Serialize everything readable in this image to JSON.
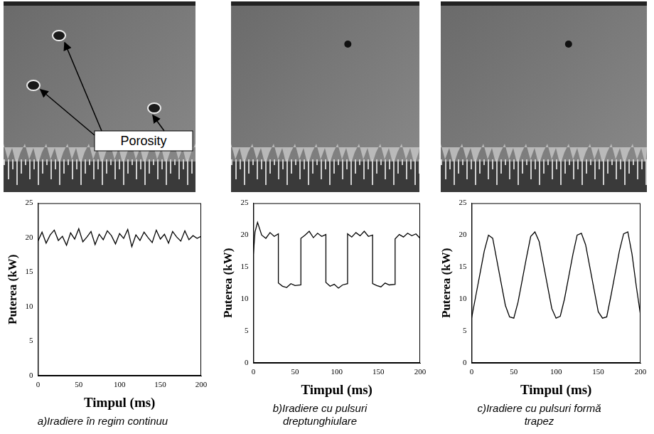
{
  "chart_data": [
    {
      "type": "line",
      "title": "a)Iradiere în regim continuu",
      "xlabel": "Timpul (ms)",
      "ylabel": "Puterea (kW)",
      "annotations": [
        "Porosity"
      ],
      "x": [
        0,
        5,
        10,
        15,
        20,
        25,
        30,
        35,
        40,
        45,
        50,
        55,
        60,
        65,
        70,
        75,
        80,
        85,
        90,
        95,
        100,
        105,
        110,
        115,
        120,
        125,
        130,
        135,
        140,
        145,
        150,
        155,
        160,
        165,
        170,
        175,
        180,
        185,
        190,
        195,
        200
      ],
      "values": [
        19.5,
        20.8,
        19.2,
        20.4,
        21.1,
        19.6,
        20.2,
        18.9,
        20.7,
        19.8,
        21.3,
        19.4,
        20.1,
        20.9,
        19.0,
        20.5,
        19.7,
        21.0,
        20.3,
        19.1,
        20.6,
        19.9,
        21.2,
        18.7,
        20.4,
        19.6,
        20.8,
        20.0,
        19.3,
        21.1,
        19.8,
        20.5,
        19.2,
        20.9,
        20.1,
        19.5,
        21.0,
        19.7,
        20.3,
        19.9,
        20.2
      ],
      "color": "#000000",
      "xlim": [
        0,
        200
      ],
      "xticks": [
        0,
        50,
        100,
        150,
        200
      ],
      "ylim": [
        0,
        25
      ],
      "yticks": [
        0,
        5,
        10,
        15,
        20,
        25
      ],
      "grid": false
    },
    {
      "type": "line",
      "title": "b)Iradiere cu pulsuri dreptunghiulare",
      "xlabel": "Timpul (ms)",
      "ylabel": "Puterea (kW)",
      "x": [
        0,
        2,
        5,
        10,
        15,
        20,
        25,
        30,
        30,
        35,
        40,
        45,
        50,
        57,
        57,
        62,
        67,
        72,
        77,
        82,
        87,
        87,
        92,
        97,
        102,
        107,
        113,
        113,
        118,
        123,
        128,
        133,
        138,
        143,
        143,
        148,
        153,
        158,
        163,
        170,
        170,
        175,
        180,
        185,
        190,
        195,
        200
      ],
      "values": [
        17,
        20.5,
        22,
        20,
        19.5,
        20.4,
        19.8,
        20.2,
        12.5,
        12,
        11.8,
        12.4,
        12.1,
        12.2,
        19.5,
        20,
        20.6,
        19.6,
        20.3,
        19.8,
        20.1,
        12.6,
        12,
        12.3,
        11.7,
        12.2,
        12.4,
        20.2,
        19.7,
        20.4,
        19.9,
        20.6,
        19.8,
        20.0,
        12.4,
        12.1,
        11.9,
        12.5,
        12.2,
        12.3,
        19.4,
        20.1,
        19.7,
        20.3,
        19.9,
        20.2,
        19.5
      ],
      "color": "#000000",
      "xlim": [
        0,
        200
      ],
      "xticks": [
        0,
        50,
        100,
        150,
        200
      ],
      "ylim": [
        0,
        25
      ],
      "yticks": [
        0,
        5,
        10,
        15,
        20,
        25
      ],
      "grid": false
    },
    {
      "type": "line",
      "title": "c)Iradiere cu pulsuri formă trapez",
      "xlabel": "Timpul (ms)",
      "ylabel": "Puterea (kW)",
      "x": [
        0,
        5,
        10,
        15,
        20,
        25,
        30,
        35,
        40,
        45,
        50,
        55,
        60,
        65,
        70,
        75,
        80,
        85,
        90,
        95,
        100,
        105,
        110,
        115,
        120,
        125,
        130,
        135,
        140,
        145,
        150,
        155,
        160,
        165,
        170,
        175,
        180,
        185,
        190,
        195,
        200
      ],
      "values": [
        7,
        10.5,
        14,
        17.5,
        20,
        19.5,
        16,
        12.5,
        9,
        7.2,
        7,
        9.5,
        13,
        16.5,
        19.8,
        20.5,
        19,
        15.5,
        12,
        8.5,
        7,
        7.3,
        10,
        13.5,
        17,
        20,
        20.3,
        18.5,
        15,
        11.5,
        8,
        7,
        7.2,
        10.5,
        14,
        17.5,
        20.2,
        20.5,
        17,
        12,
        7.5
      ],
      "color": "#000000",
      "xlim": [
        0,
        200
      ],
      "xticks": [
        0,
        50,
        100,
        150,
        200
      ],
      "ylim": [
        0,
        25
      ],
      "yticks": [
        0,
        5,
        10,
        15,
        20,
        25
      ],
      "grid": false
    }
  ]
}
